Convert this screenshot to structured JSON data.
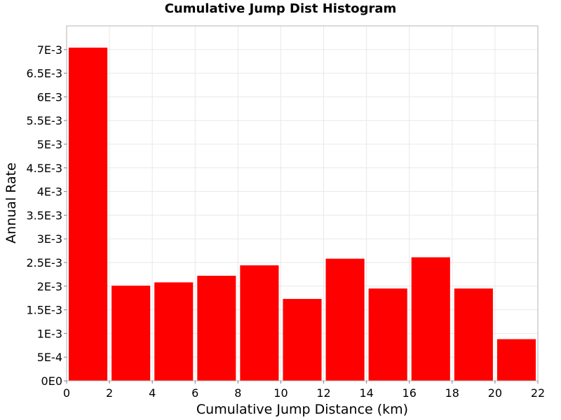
{
  "chart_data": {
    "type": "bar",
    "title": "Cumulative Jump Dist Histogram",
    "xlabel": "Cumulative Jump Distance (km)",
    "ylabel": "Annual Rate",
    "xlim": [
      0,
      22
    ],
    "ylim": [
      0,
      0.0075
    ],
    "x_ticks": [
      0,
      2,
      4,
      6,
      8,
      10,
      12,
      14,
      16,
      18,
      20,
      22
    ],
    "x_tick_labels": [
      "0",
      "2",
      "4",
      "6",
      "8",
      "10",
      "12",
      "14",
      "16",
      "18",
      "20",
      "22"
    ],
    "y_ticks": [
      0,
      0.0005,
      0.001,
      0.0015,
      0.002,
      0.0025,
      0.003,
      0.0035,
      0.004,
      0.0045,
      0.005,
      0.0055,
      0.006,
      0.0065,
      0.007
    ],
    "y_tick_labels": [
      "0E0",
      "5E-4",
      "1E-3",
      "1.5E-3",
      "2E-3",
      "2.5E-3",
      "3E-3",
      "3.5E-3",
      "4E-3",
      "4.5E-3",
      "5E-3",
      "5.5E-3",
      "6E-3",
      "6.5E-3",
      "7E-3"
    ],
    "bin_width": 2,
    "x": [
      1,
      3,
      5,
      7,
      9,
      11,
      13,
      15,
      17,
      19,
      21
    ],
    "values": [
      0.00704,
      0.00201,
      0.00208,
      0.00222,
      0.00244,
      0.00173,
      0.00258,
      0.00195,
      0.00261,
      0.00195,
      0.00088
    ],
    "bar_color": "#ff0000",
    "grid": true,
    "grid_color": "#e8e8e8",
    "legend": false
  }
}
